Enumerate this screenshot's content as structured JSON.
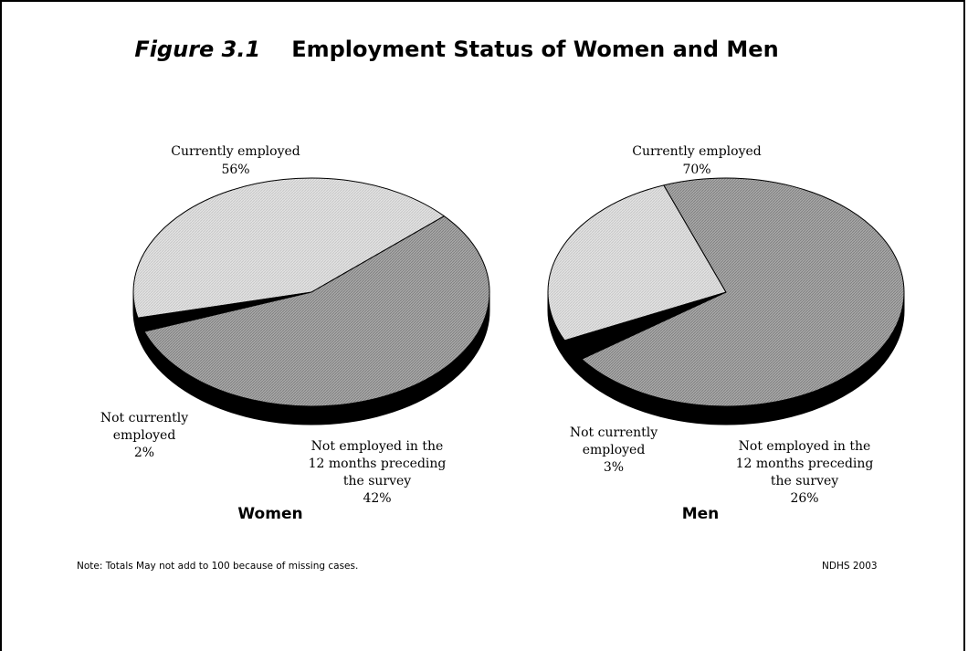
{
  "title": {
    "figure_label": "Figure 3.1",
    "text": "Employment Status of Women and Men"
  },
  "chart_data": [
    {
      "type": "pie",
      "title": "Women",
      "slices": [
        {
          "label": "Currently employed",
          "value": 56,
          "value_label": "56%",
          "color": "#a3a3a3"
        },
        {
          "label": "Not employed in the 12 months preceding the survey",
          "value": 42,
          "value_label": "42%",
          "color": "#dedede"
        },
        {
          "label": "Not currently employed",
          "value": 2,
          "value_label": "2%",
          "color": "#000000"
        }
      ]
    },
    {
      "type": "pie",
      "title": "Men",
      "slices": [
        {
          "label": "Currently employed",
          "value": 70,
          "value_label": "70%",
          "color": "#a3a3a3"
        },
        {
          "label": "Not employed in the 12 months preceding the survey",
          "value": 26,
          "value_label": "26%",
          "color": "#dedede"
        },
        {
          "label": "Not currently employed",
          "value": 3,
          "value_label": "3%",
          "color": "#000000"
        }
      ]
    }
  ],
  "footer": {
    "note": "Note: Totals May not add to 100 because of missing cases.",
    "source": "NDHS 2003"
  },
  "colors": {
    "employed": "#a3a3a3",
    "not_employed_12m": "#dedede",
    "not_currently": "#000000",
    "side": "#000000"
  }
}
